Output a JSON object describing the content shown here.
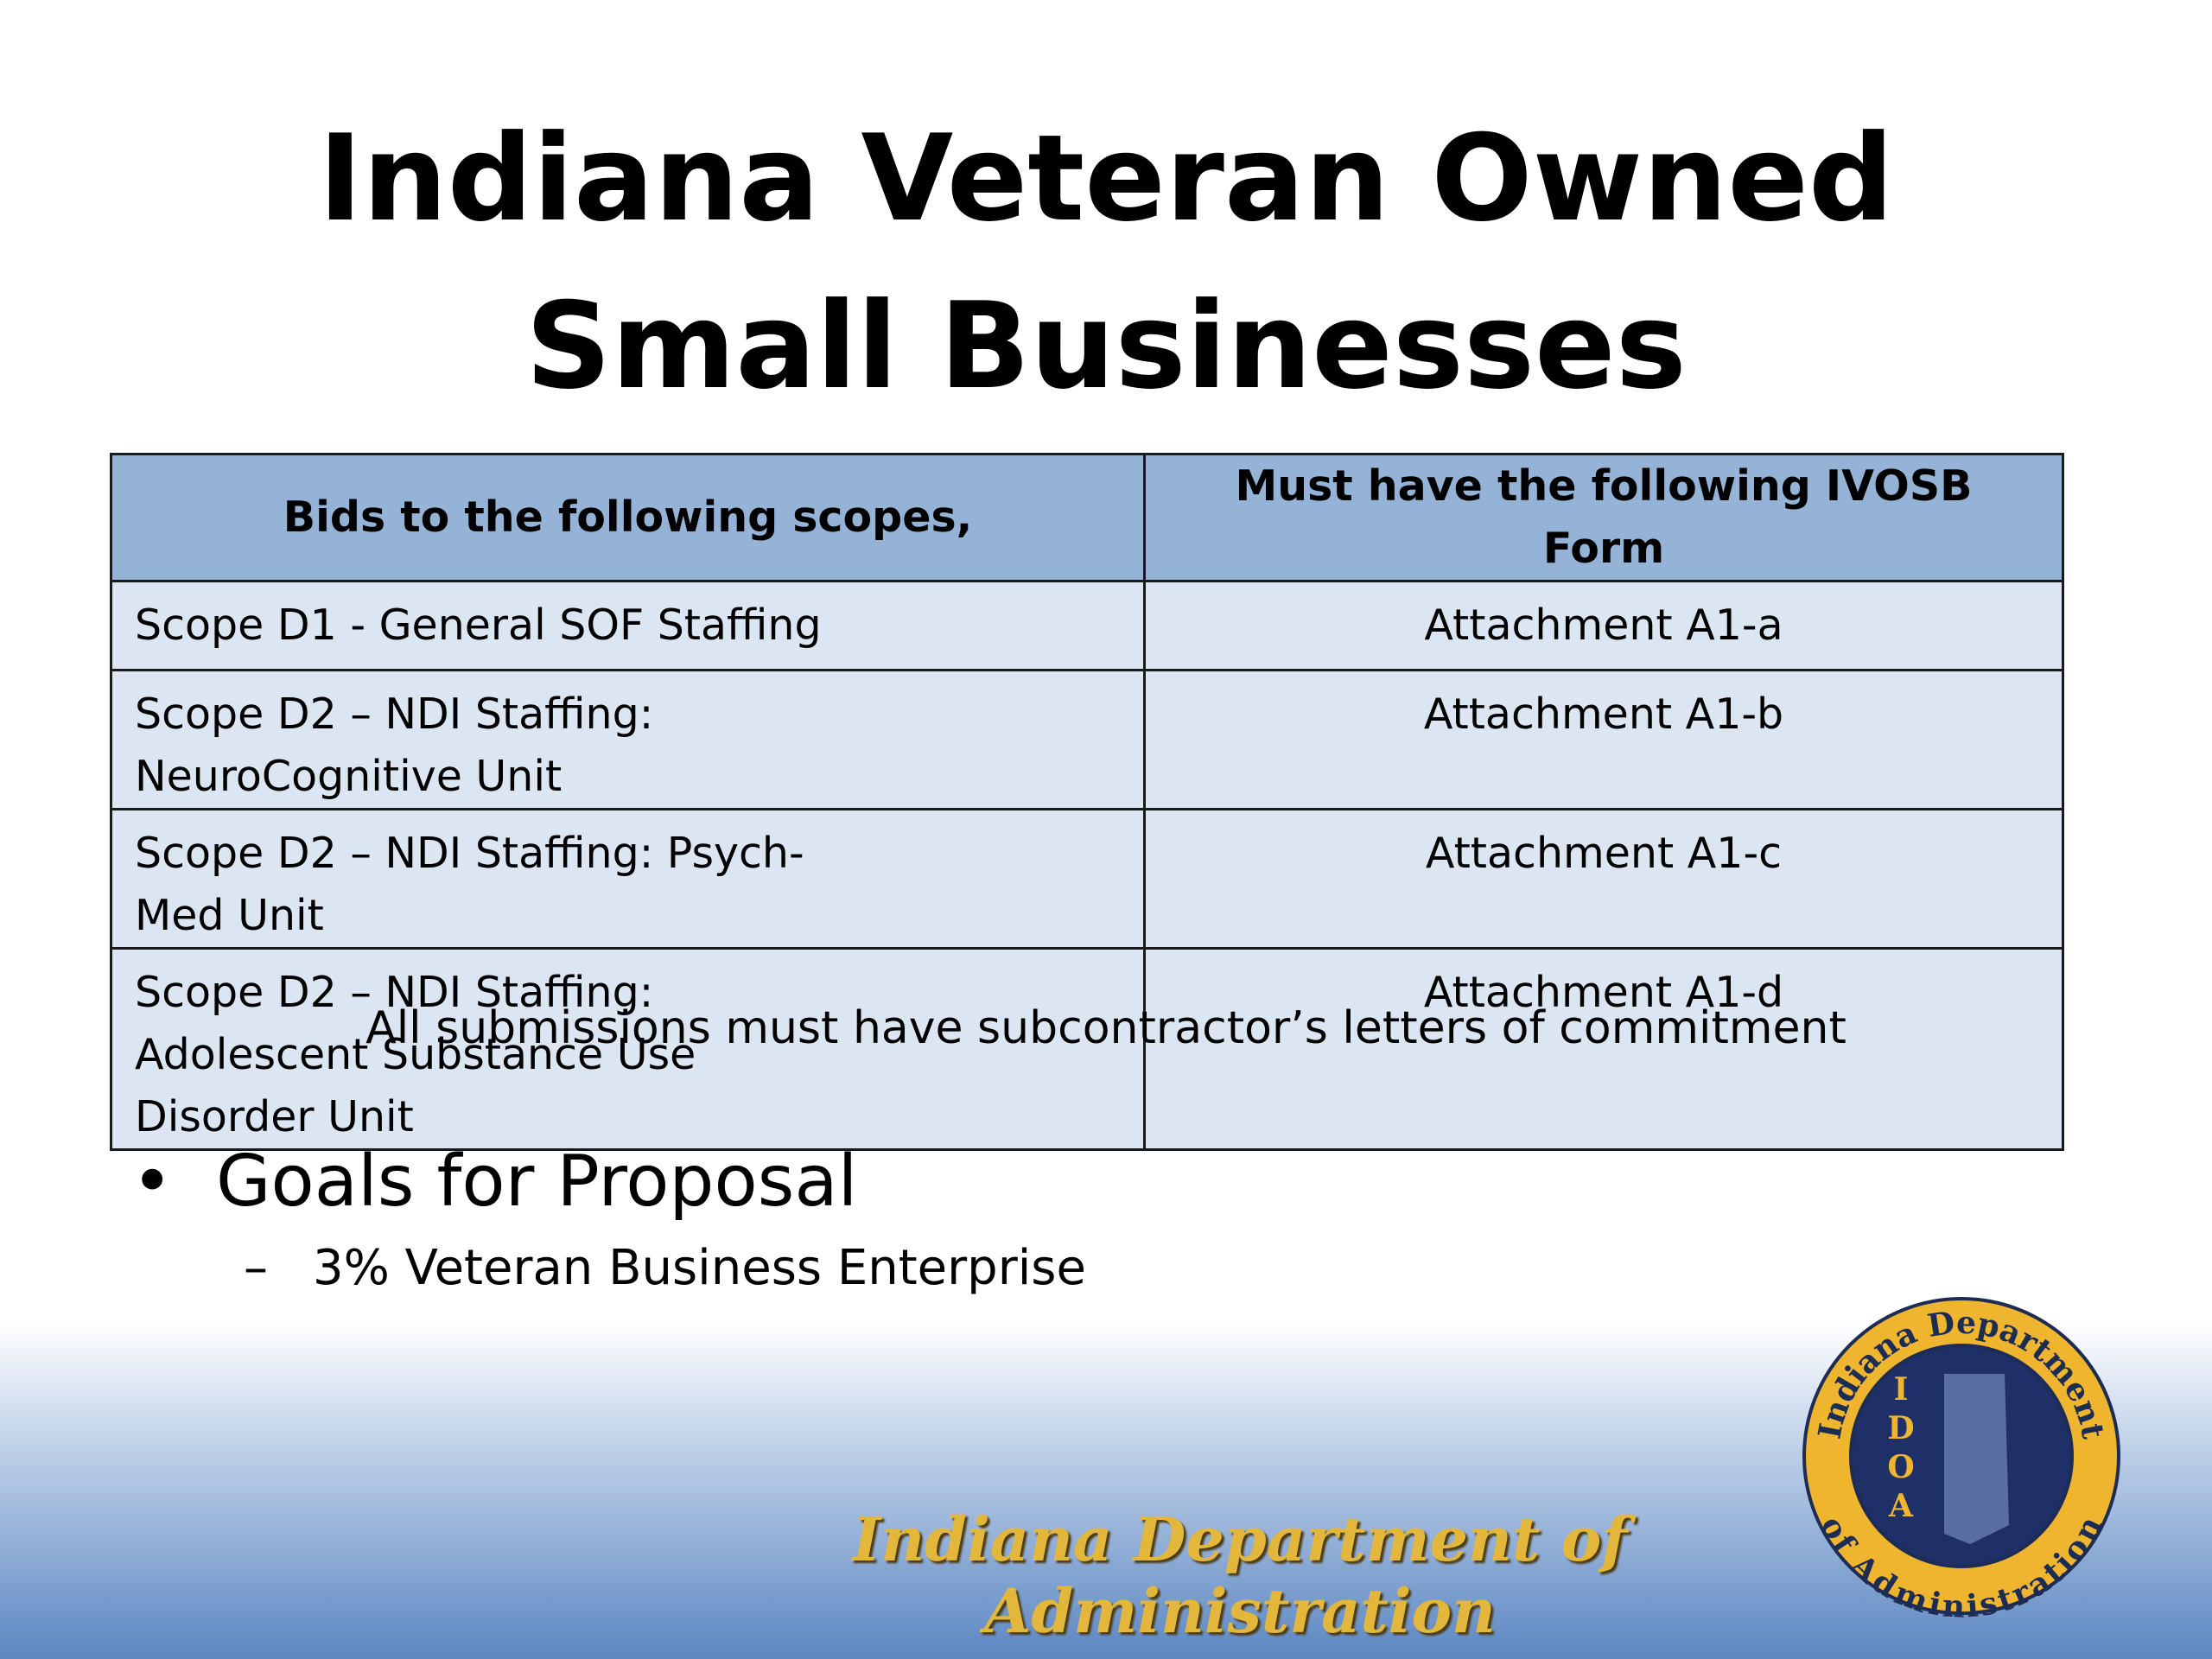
{
  "title": "Indiana Veteran Owned Small Businesses",
  "table": {
    "header": [
      "Bids to the following scopes,",
      "Must have the following IVOSB Form"
    ],
    "rows": [
      [
        "Scope D1 - General SOF Staffing",
        "Attachment A1-a"
      ],
      [
        "Scope D2 – NDI Staffing: NeuroCognitive Unit",
        "Attachment A1-b"
      ],
      [
        "Scope D2 – NDI Staffing: Psych-Med Unit",
        "Attachment A1-c"
      ],
      [
        "Scope D2 – NDI Staffing: Adolescent Substance Use Disorder Unit",
        "Attachment A1-d"
      ]
    ]
  },
  "note": "All submissions must have subcontractor’s letters of commitment",
  "bullets": [
    {
      "text": "Goals for Proposal",
      "sub": [
        "3% Veteran Business Enterprise"
      ]
    }
  ],
  "footer": "Indiana Department of Administration",
  "logo": {
    "top": "Indiana Department",
    "bottom": "of Administration",
    "letters": [
      "I",
      "D",
      "O",
      "A"
    ]
  }
}
